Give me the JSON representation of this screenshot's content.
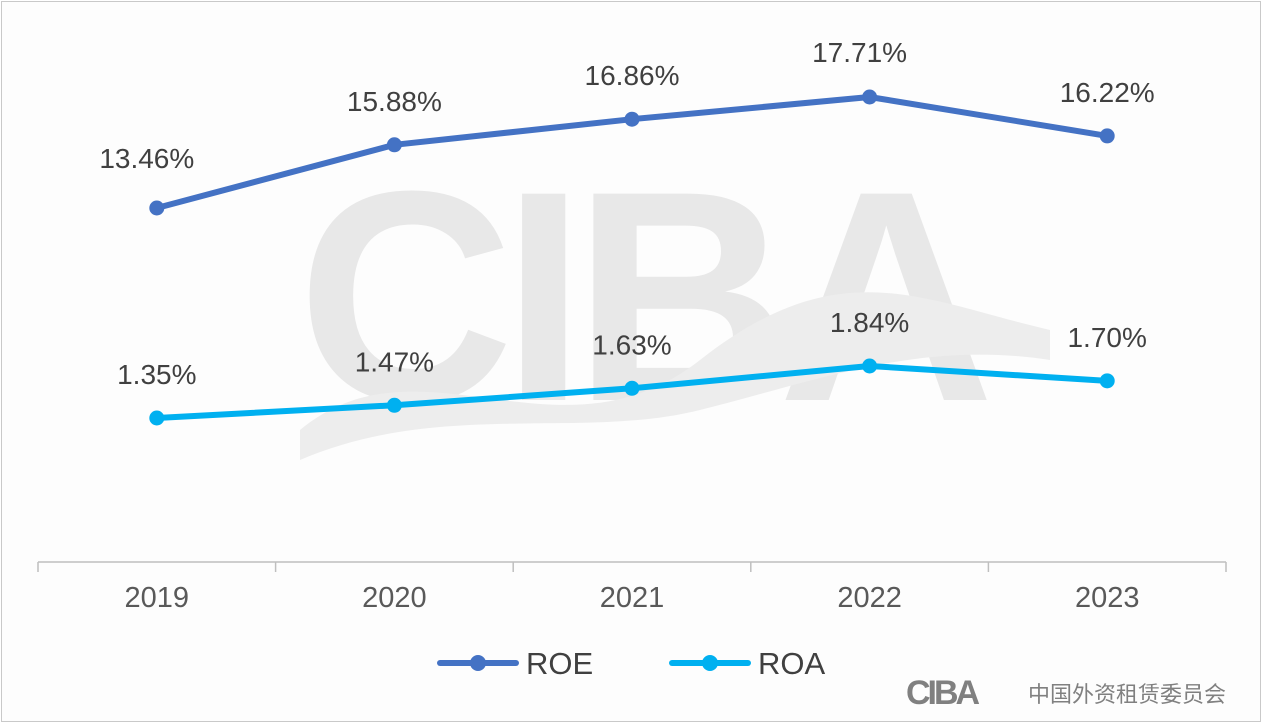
{
  "chart_data": {
    "type": "line",
    "categories": [
      "2019",
      "2020",
      "2021",
      "2022",
      "2023"
    ],
    "ylim": [
      0,
      20
    ],
    "series": [
      {
        "name": "ROE",
        "color": "#4472c4",
        "values": [
          13.46,
          15.88,
          16.86,
          17.71,
          16.22
        ],
        "labels": [
          "13.46%",
          "15.88%",
          "16.86%",
          "17.71%",
          "16.22%"
        ]
      },
      {
        "name": "ROA",
        "color": "#00b0f0",
        "values": [
          1.35,
          1.47,
          1.63,
          1.84,
          1.7
        ],
        "labels": [
          "1.35%",
          "1.47%",
          "1.63%",
          "1.84%",
          "1.70%"
        ]
      }
    ],
    "legend": "bottom",
    "grid": false
  },
  "watermark": {
    "text": "CIBA",
    "color": "#e6e6e6"
  },
  "footer_logo": {
    "mark": "CIBA",
    "org_name": "中国外资租赁委员会",
    "color": "#7f7f7f"
  }
}
